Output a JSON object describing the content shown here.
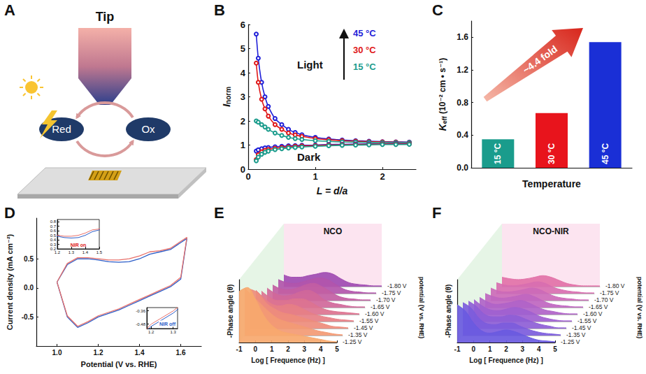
{
  "diagram": {
    "panel": "A",
    "tip": "Tip",
    "reduced": "Red",
    "oxidized": "Ox"
  },
  "chart_data": [
    {
      "panel": "B",
      "type": "line",
      "xlabel": "L = d/a",
      "ylabel": "Inorm",
      "x": [
        0.12,
        0.15,
        0.2,
        0.25,
        0.3,
        0.4,
        0.5,
        0.6,
        0.7,
        0.8,
        1.0,
        1.2,
        1.4,
        1.6,
        1.8,
        2.0,
        2.2,
        2.4
      ],
      "xlim": [
        0,
        2.5
      ],
      "xticks": [
        0,
        1,
        2
      ],
      "ylim": [
        0,
        6
      ],
      "yticks": [
        0,
        1,
        2,
        3,
        4,
        5,
        6
      ],
      "marker": "circle",
      "series": [
        {
          "color": "#1f1fd8",
          "values": [
            5.6,
            4.6,
            3.6,
            3.0,
            2.6,
            2.1,
            1.85,
            1.65,
            1.52,
            1.43,
            1.32,
            1.25,
            1.21,
            1.18,
            1.16,
            1.14,
            1.13,
            1.12
          ]
        },
        {
          "color": "#e01818",
          "values": [
            4.4,
            3.6,
            2.9,
            2.5,
            2.2,
            1.85,
            1.65,
            1.5,
            1.42,
            1.36,
            1.27,
            1.22,
            1.18,
            1.16,
            1.14,
            1.13,
            1.12,
            1.11
          ]
        },
        {
          "color": "#1a9c8c",
          "values": [
            2.0,
            1.95,
            1.85,
            1.75,
            1.65,
            1.5,
            1.4,
            1.32,
            1.27,
            1.23,
            1.18,
            1.15,
            1.13,
            1.12,
            1.11,
            1.1,
            1.1,
            1.1
          ]
        },
        {
          "color": "#1f1fd8",
          "values": [
            0.75,
            0.8,
            0.85,
            0.88,
            0.9,
            0.93,
            0.95,
            0.97,
            0.98,
            0.99,
            1.0,
            1.02,
            1.03,
            1.04,
            1.05,
            1.05,
            1.06,
            1.06
          ]
        },
        {
          "color": "#e01818",
          "values": [
            0.4,
            0.6,
            0.72,
            0.78,
            0.82,
            0.87,
            0.9,
            0.93,
            0.95,
            0.96,
            0.98,
            1.0,
            1.01,
            1.02,
            1.03,
            1.04,
            1.04,
            1.05
          ]
        },
        {
          "color": "#1a9c8c",
          "values": [
            0.35,
            0.5,
            0.62,
            0.7,
            0.75,
            0.81,
            0.85,
            0.88,
            0.9,
            0.92,
            0.95,
            0.97,
            0.99,
            1.0,
            1.01,
            1.02,
            1.02,
            1.03
          ]
        }
      ],
      "annotations": [
        {
          "text": "Light"
        },
        {
          "text": "Dark"
        },
        {
          "text": "45 °C",
          "color": "#1f1fd8"
        },
        {
          "text": "30 °C",
          "color": "#e01818"
        },
        {
          "text": "15 °C",
          "color": "#1a9c8c"
        }
      ]
    },
    {
      "panel": "C",
      "type": "bar",
      "xlabel": "Temperature",
      "ylabel": "Keff (10⁻² cm • s⁻¹)",
      "categories": [
        "15 °C",
        "30 °C",
        "45 °C"
      ],
      "values": [
        0.35,
        0.67,
        1.54
      ],
      "colors": [
        "#1a9c8c",
        "#e8141c",
        "#1a2fd6"
      ],
      "ylim": [
        0,
        1.8
      ],
      "yticks": [
        {
          "value": 0,
          "label": "0.0"
        },
        0.4,
        0.8,
        1.2,
        1.6
      ],
      "tick_labels": "y",
      "annotations": [
        {
          "text": "~4.4 fold",
          "color": "#d8261c"
        }
      ]
    },
    {
      "panel": "D",
      "type": "line",
      "xlabel": "Potential (V vs. RHE)",
      "ylabel": "Current density (mA cm⁻²)",
      "xlim": [
        0.9,
        1.7
      ],
      "xticks": [
        {
          "value": 1,
          "label": "1.0"
        },
        1.2,
        1.4,
        1.6
      ],
      "ylim": [
        -1.0,
        1.2
      ],
      "yticks": [
        -0.5,
        {
          "value": 0,
          "label": "0.0"
        },
        0.5
      ],
      "series": [
        {
          "color": "#2a5cc8",
          "x": [
            1.0,
            1.05,
            1.1,
            1.15,
            1.2,
            1.25,
            1.3,
            1.35,
            1.4,
            1.45,
            1.5,
            1.55,
            1.6,
            1.63,
            1.6,
            1.55,
            1.5,
            1.45,
            1.4,
            1.35,
            1.3,
            1.25,
            1.2,
            1.15,
            1.1,
            1.05,
            1.0
          ],
          "values": [
            0.1,
            0.4,
            0.5,
            0.5,
            0.48,
            0.45,
            0.44,
            0.45,
            0.5,
            0.58,
            0.62,
            0.66,
            0.78,
            0.85,
            0.15,
            0.02,
            -0.06,
            -0.14,
            -0.22,
            -0.3,
            -0.38,
            -0.44,
            -0.5,
            -0.6,
            -0.68,
            -0.5,
            0.1
          ]
        },
        {
          "color": "#e8706a",
          "x": [
            1.0,
            1.05,
            1.1,
            1.15,
            1.2,
            1.25,
            1.3,
            1.35,
            1.4,
            1.45,
            1.5,
            1.55,
            1.6,
            1.63,
            1.6,
            1.55,
            1.5,
            1.45,
            1.4,
            1.35,
            1.3,
            1.25,
            1.2,
            1.15,
            1.1,
            1.05,
            1.0
          ],
          "values": [
            0.1,
            0.42,
            0.52,
            0.52,
            0.5,
            0.48,
            0.48,
            0.5,
            0.55,
            0.62,
            0.64,
            0.68,
            0.8,
            0.87,
            0.18,
            0.04,
            -0.04,
            -0.12,
            -0.2,
            -0.28,
            -0.36,
            -0.42,
            -0.48,
            -0.58,
            -0.66,
            -0.48,
            0.1
          ]
        }
      ],
      "insets": [
        {
          "xlim": [
            1.2,
            1.5
          ],
          "xticks": [
            1.2,
            1.3,
            1.4,
            1.5
          ],
          "ylim": [
            0.2,
            0.85
          ],
          "yticks": [
            0.2,
            0.3,
            0.4,
            0.5,
            0.6,
            0.7,
            0.8
          ],
          "annotation": "NIR on",
          "color": "#e01818"
        },
        {
          "xlim": [
            1.18,
            1.32
          ],
          "xticks": [
            1.2,
            1.3
          ],
          "ylim": [
            -0.52,
            -0.33
          ],
          "yticks": [
            -0.48,
            -0.36
          ],
          "annotation": "NIR off",
          "color": "#2a5cc8"
        }
      ]
    },
    {
      "panel": "E",
      "type": "area",
      "title": "NCO",
      "xlabel": "Log [ Frequence (Hz) ]",
      "ylabel": "-Phase angle (θ)",
      "zlabel": "potential (V vs. RHE)",
      "x": [
        -1,
        -0.5,
        0,
        0.5,
        1,
        1.5,
        2,
        2.5,
        3,
        3.5,
        4,
        4.5,
        5
      ],
      "xlim": [
        -1,
        5
      ],
      "xticks": [
        -1,
        0,
        1,
        2,
        3,
        4,
        5
      ],
      "ylim": [
        0,
        80
      ],
      "tick_labels": "x",
      "series": [
        {
          "name": "-1.25 V",
          "color": "#f7a86e",
          "values": [
            65,
            70,
            55,
            35,
            22,
            15,
            12,
            10,
            8,
            6,
            4,
            2,
            1
          ]
        },
        {
          "name": "-1.35 V",
          "color": "#f39a74",
          "values": [
            60,
            50,
            40,
            30,
            22,
            18,
            15,
            12,
            9,
            6,
            4,
            2,
            1
          ]
        },
        {
          "name": "-1.45 V",
          "color": "#ee8c7c",
          "values": [
            50,
            45,
            32,
            25,
            20,
            18,
            15,
            12,
            9,
            6,
            3,
            2,
            1
          ]
        },
        {
          "name": "-1.55 V",
          "color": "#e67f86",
          "values": [
            40,
            30,
            22,
            20,
            22,
            20,
            15,
            10,
            7,
            5,
            3,
            2,
            1
          ]
        },
        {
          "name": "-1.60 V",
          "color": "#dc7390",
          "values": [
            30,
            22,
            18,
            18,
            20,
            20,
            16,
            10,
            6,
            4,
            3,
            2,
            1
          ]
        },
        {
          "name": "-1.65 V",
          "color": "#d0689a",
          "values": [
            25,
            18,
            15,
            16,
            20,
            22,
            18,
            10,
            6,
            4,
            2,
            1,
            1
          ]
        },
        {
          "name": "-1.70 V",
          "color": "#c25ea3",
          "values": [
            20,
            15,
            14,
            16,
            20,
            22,
            18,
            12,
            6,
            3,
            2,
            1,
            1
          ]
        },
        {
          "name": "-1.75 V",
          "color": "#b255ab",
          "values": [
            18,
            14,
            13,
            15,
            18,
            20,
            18,
            12,
            6,
            3,
            2,
            1,
            1
          ]
        },
        {
          "name": "-1.80 V",
          "color": "#a04cb2",
          "values": [
            15,
            12,
            12,
            14,
            16,
            18,
            16,
            10,
            5,
            3,
            2,
            1,
            1
          ]
        }
      ]
    },
    {
      "panel": "F",
      "type": "area",
      "title": "NCO-NIR",
      "xlabel": "Log [ Frequence (Hz) ]",
      "ylabel": "-Phase angle (θ)",
      "zlabel": "potential (V vs. RHE)",
      "x": [
        -1,
        -0.5,
        0,
        0.5,
        1,
        1.5,
        2,
        2.5,
        3,
        3.5,
        4,
        4.5,
        5
      ],
      "xlim": [
        -1,
        5
      ],
      "xticks": [
        -1,
        0,
        1,
        2,
        3,
        4,
        5
      ],
      "ylim": [
        0,
        80
      ],
      "tick_labels": "x",
      "series": [
        {
          "name": "-1.25 V",
          "color": "#6a5ae0",
          "values": [
            48,
            40,
            25,
            15,
            12,
            14,
            16,
            14,
            10,
            6,
            3,
            2,
            1
          ]
        },
        {
          "name": "-1.35 V",
          "color": "#7c5cdc",
          "values": [
            42,
            35,
            22,
            15,
            14,
            16,
            16,
            12,
            8,
            5,
            3,
            2,
            1
          ]
        },
        {
          "name": "-1.45 V",
          "color": "#8e5ed6",
          "values": [
            35,
            28,
            18,
            15,
            15,
            17,
            16,
            12,
            8,
            5,
            3,
            1,
            1
          ]
        },
        {
          "name": "-1.55 V",
          "color": "#a060d0",
          "values": [
            28,
            20,
            15,
            14,
            16,
            18,
            16,
            12,
            7,
            4,
            2,
            1,
            1
          ]
        },
        {
          "name": "-1.60 V",
          "color": "#b063c8",
          "values": [
            22,
            16,
            13,
            14,
            16,
            18,
            15,
            10,
            6,
            4,
            2,
            1,
            1
          ]
        },
        {
          "name": "-1.65 V",
          "color": "#bf66c0",
          "values": [
            18,
            14,
            12,
            13,
            15,
            17,
            14,
            9,
            5,
            3,
            2,
            1,
            1
          ]
        },
        {
          "name": "-1.70 V",
          "color": "#cc6ab8",
          "values": [
            16,
            12,
            11,
            12,
            14,
            16,
            14,
            9,
            5,
            3,
            2,
            1,
            1
          ]
        },
        {
          "name": "-1.75 V",
          "color": "#d86eb0",
          "values": [
            14,
            11,
            10,
            11,
            13,
            15,
            13,
            8,
            5,
            3,
            2,
            1,
            1
          ]
        },
        {
          "name": "-1.80 V",
          "color": "#e272a8",
          "values": [
            12,
            10,
            9,
            10,
            12,
            14,
            12,
            8,
            4,
            2,
            1,
            1,
            1
          ]
        }
      ]
    }
  ]
}
